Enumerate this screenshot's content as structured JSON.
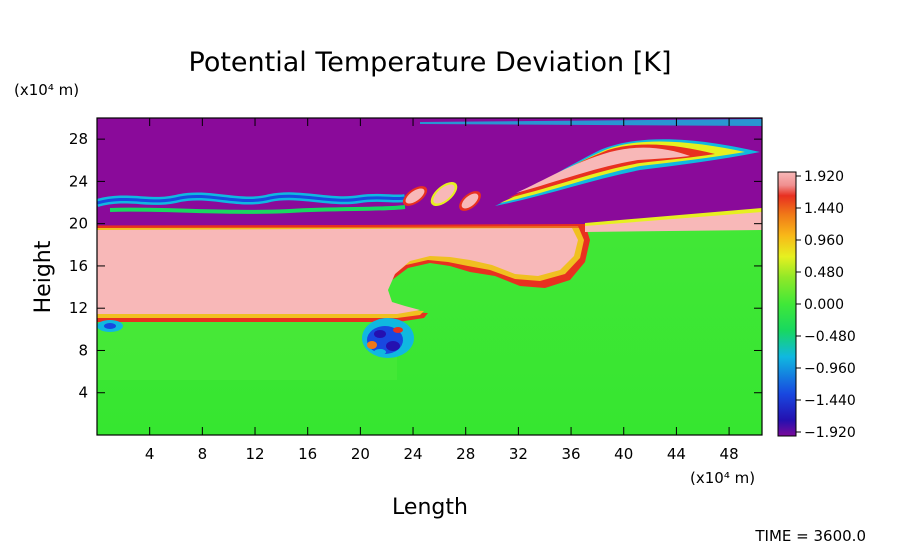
{
  "chart_data": {
    "type": "heatmap",
    "title": "Potential Temperature Deviation [K]",
    "xlabel": "Length",
    "ylabel": "Height",
    "x_unit": "(x10⁴ m)",
    "y_unit": "(x10⁴ m)",
    "xlim": [
      0,
      50.5
    ],
    "ylim": [
      0,
      30
    ],
    "x_ticks": [
      4,
      8,
      12,
      16,
      20,
      24,
      28,
      32,
      36,
      40,
      44,
      48
    ],
    "y_ticks": [
      4,
      8,
      12,
      16,
      20,
      24,
      28
    ],
    "x_tick_labels": [
      "4",
      "8",
      "12",
      "16",
      "20",
      "24",
      "28",
      "32",
      "36",
      "40",
      "44",
      "48"
    ],
    "y_tick_labels": [
      "4",
      "8",
      "12",
      "16",
      "20",
      "24",
      "28"
    ],
    "colorbar": {
      "min": -1.92,
      "max": 1.92,
      "labels": [
        "1.920",
        "1.440",
        "0.960",
        "0.480",
        "0.000",
        "−0.480",
        "−0.960",
        "−1.440",
        "−1.920"
      ],
      "colors": [
        "#7a0a9a",
        "#2410b0",
        "#1848e0",
        "#10b8e0",
        "#18d860",
        "#40e838",
        "#90e828",
        "#e6f020",
        "#f8b818",
        "#f07818",
        "#e83020",
        "#f09090",
        "#f8b8b8"
      ]
    },
    "field_colors": {
      "positive_saturated": "#f8b8b8",
      "near_zero": "#40e838",
      "negative_saturated": "#8a0a9a",
      "edge": "#e83020"
    },
    "time_label": "TIME = 3600.0"
  }
}
